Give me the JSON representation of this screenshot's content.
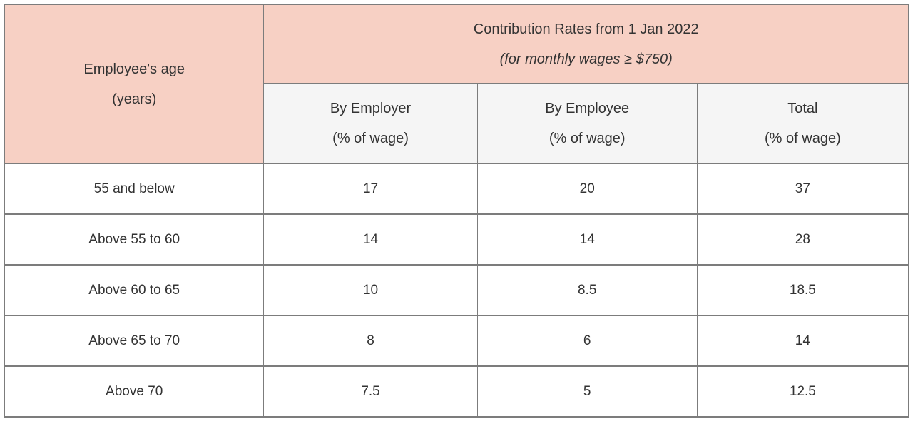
{
  "chart_data": {
    "type": "table",
    "title": "Contribution Rates from 1 Jan 2022",
    "subtitle": "(for monthly wages ≥ $750)",
    "row_header": {
      "line1": "Employee's age",
      "line2": "(years)"
    },
    "columns": [
      {
        "label": "By Employer",
        "unit": "(% of wage)"
      },
      {
        "label": "By Employee",
        "unit": "(% of wage)"
      },
      {
        "label": "Total",
        "unit": "(% of wage)"
      }
    ],
    "rows": [
      {
        "age": "55 and below",
        "by_employer": "17",
        "by_employee": "20",
        "total": "37"
      },
      {
        "age": "Above 55 to 60",
        "by_employer": "14",
        "by_employee": "14",
        "total": "28"
      },
      {
        "age": "Above 60 to 65",
        "by_employer": "10",
        "by_employee": "8.5",
        "total": "18.5"
      },
      {
        "age": "Above 65 to 70",
        "by_employer": "8",
        "by_employee": "6",
        "total": "14"
      },
      {
        "age": "Above 70",
        "by_employer": "7.5",
        "by_employee": "5",
        "total": "12.5"
      }
    ]
  },
  "colors": {
    "header_bg": "#f7d0c4",
    "subheader_bg": "#f5f5f5",
    "border": "#7c7c7c",
    "text": "#333333"
  }
}
